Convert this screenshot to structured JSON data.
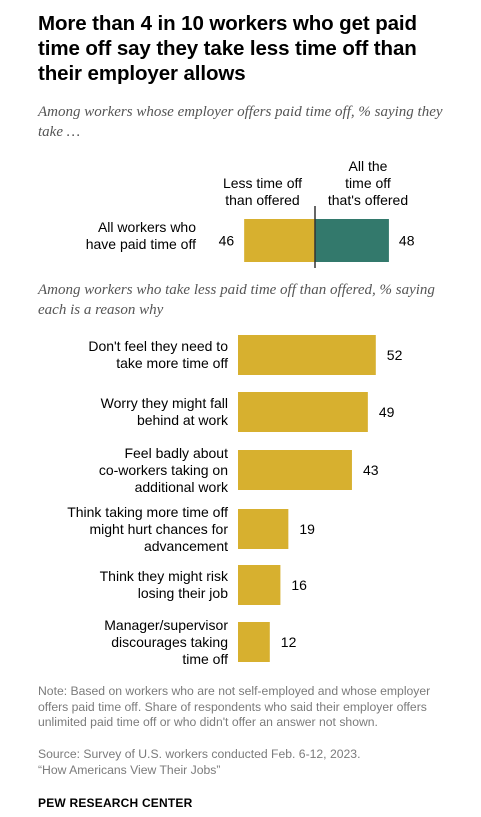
{
  "title": "More than 4 in 10 workers who get paid time off say they take less time off than their employer allows",
  "subtitle_top": "Among workers whose employer offers paid time off, % saying they take …",
  "subtitle_bottom": "Among workers who take less paid time off than offered, % saying each is a reason why",
  "colors": {
    "gold": "#D7B02F",
    "teal": "#33796C",
    "note": "#7b7b7b"
  },
  "chart_data": [
    {
      "type": "bar",
      "orientation": "horizontal",
      "stacked": true,
      "categories": [
        "All workers who have paid time off"
      ],
      "series": [
        {
          "name": "Less time off than offered",
          "values": [
            46
          ]
        },
        {
          "name": "All the time off that's offered",
          "values": [
            48
          ]
        }
      ]
    },
    {
      "type": "bar",
      "orientation": "horizontal",
      "categories": [
        "Don't feel they need to take more time off",
        "Worry they might fall behind at work",
        "Feel badly about co-workers taking on additional work",
        "Think taking more time off might hurt chances for advancement",
        "Think they might risk losing their job",
        "Manager/supervisor discourages taking time off"
      ],
      "values": [
        52,
        49,
        43,
        19,
        16,
        12
      ]
    }
  ],
  "top_chart": {
    "row_label": "All workers who have paid time off",
    "col_less": "Less time off than offered",
    "col_all": "All the time off that's offered"
  },
  "note": "Note: Based on workers who are not self-employed and whose employer offers paid time off. Share of respondents who said their employer offers unlimited paid time off or who didn't offer an answer not shown.",
  "source": "Source: Survey of U.S. workers conducted Feb. 6-12, 2023.",
  "quote": "“How Americans View Their Jobs”",
  "footer": "PEW RESEARCH CENTER"
}
